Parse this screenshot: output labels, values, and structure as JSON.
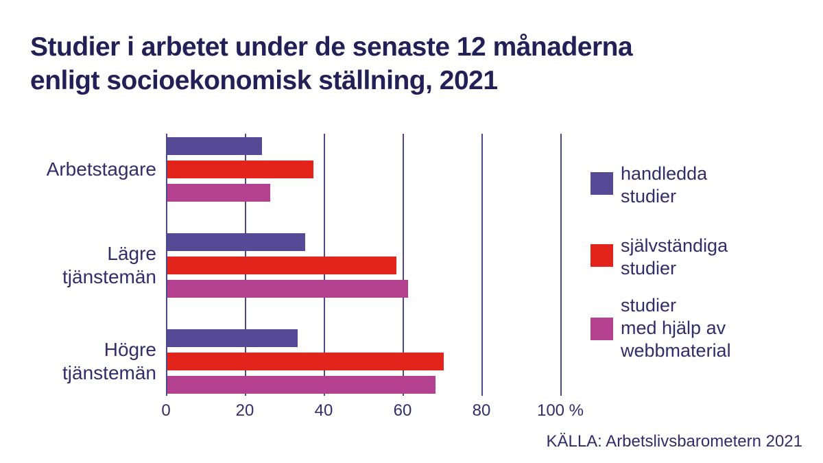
{
  "title": {
    "line1": "Studier i arbetet under de senaste 12 månaderna",
    "line2": "enligt socioekonomisk ställning, 2021"
  },
  "source": "KÄLLA: Arbetslivsbarometern 2021",
  "colors": {
    "title_navy": "#232058",
    "text_navy": "#312d6b",
    "grid": "#4b4a87",
    "purple": "#564a96",
    "red": "#e2241d",
    "pink": "#b4418f"
  },
  "chart_data": {
    "type": "bar",
    "orientation": "horizontal",
    "title": "Studier i arbetet under de senaste 12 månaderna enligt socioekonomisk ställning, 2021",
    "categories": [
      "Arbetstagare",
      "Lägre tjänstemän",
      "Högre tjänstemän"
    ],
    "series": [
      {
        "name": "handledda studier",
        "color_key": "purple",
        "values": [
          24,
          35,
          33
        ]
      },
      {
        "name": "självständiga studier",
        "color_key": "red",
        "values": [
          37,
          58,
          70
        ]
      },
      {
        "name": "studier med hjälp av webbmaterial",
        "color_key": "pink",
        "values": [
          26,
          61,
          68
        ]
      }
    ],
    "xlim": [
      0,
      100
    ],
    "x_ticks": [
      0,
      20,
      40,
      60,
      80,
      100
    ],
    "x_tick_labels": [
      "0",
      "20",
      "40",
      "60",
      "80",
      "100 %"
    ],
    "grid": true,
    "legend_position": "right",
    "source": "KÄLLA: Arbetslivsbarometern 2021"
  },
  "legend": {
    "items": [
      {
        "lines": [
          "handledda",
          "studier"
        ],
        "color_key": "purple"
      },
      {
        "lines": [
          "självständiga",
          "studier"
        ],
        "color_key": "red"
      },
      {
        "lines": [
          "studier",
          "med hjälp av",
          "webbmaterial"
        ],
        "color_key": "pink"
      }
    ]
  }
}
